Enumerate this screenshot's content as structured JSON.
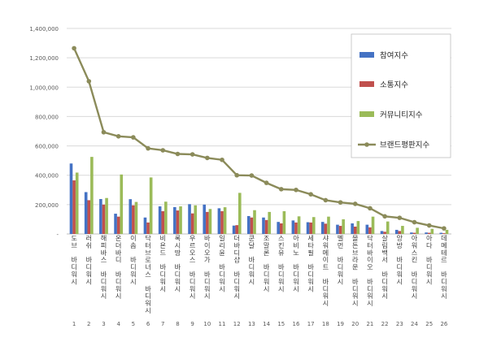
{
  "chart_data": {
    "type": "bar",
    "title": "",
    "xlabel": "",
    "ylabel": "",
    "ylim": [
      0,
      1400000
    ],
    "yticks": [
      0,
      200000,
      400000,
      600000,
      800000,
      1000000,
      1200000,
      1400000
    ],
    "ytick_labels": [
      "-",
      "200,000",
      "400,000",
      "600,000",
      "800,000",
      "1,000,000",
      "1,200,000",
      "1,400,000"
    ],
    "grid": true,
    "legend_position": "right",
    "categories": [
      "도브 바디워시",
      "러쉬 바디워시",
      "해피바스 바디워시",
      "온더바디 바디워시",
      "이솝 바디워시",
      "닥터브로너스 바디워시",
      "비욘드 바디워시",
      "록시땅 바디워시",
      "우르오스 바디워시",
      "바이오가 바디워시",
      "일리윤 바디워시",
      "더바디샵 바디워시",
      "쿤달 바디워시",
      "조말론 바디워시",
      "스킨유 바디워시",
      "아비노 바디워시",
      "세타필 바디워시",
      "샤워메이트 바디워시",
      "벨먼 바디워시",
      "몰튼브라운 바디워시",
      "닥터바이오 바디워시",
      "살림백서 바디워시",
      "앙방 바디워시",
      "아워스킨 바디워시",
      "아다 바디워시",
      "데메테르 바디워시"
    ],
    "index_labels": [
      "1",
      "2",
      "3",
      "4",
      "5",
      "6",
      "7",
      "8",
      "9",
      "10",
      "11",
      "12",
      "13",
      "14",
      "15",
      "16",
      "17",
      "18",
      "19",
      "20",
      "21",
      "22",
      "23",
      "24",
      "25",
      "26"
    ],
    "series": [
      {
        "name": "참여지수",
        "type": "bar",
        "color": "#4472c4",
        "values": [
          480000,
          285000,
          238000,
          138000,
          237000,
          112000,
          188000,
          183000,
          203000,
          200000,
          175000,
          57000,
          122000,
          112000,
          82000,
          92000,
          80000,
          82000,
          63000,
          72000,
          63000,
          20000,
          28000,
          10000,
          10000,
          8000
        ]
      },
      {
        "name": "소통지수",
        "type": "bar",
        "color": "#c0504d",
        "values": [
          365000,
          230000,
          200000,
          118000,
          195000,
          78000,
          155000,
          160000,
          140000,
          150000,
          155000,
          60000,
          112000,
          95000,
          72000,
          78000,
          78000,
          70000,
          55000,
          50000,
          45000,
          15000,
          20000,
          8000,
          8000,
          5000
        ]
      },
      {
        "name": "커뮤니티지수",
        "type": "bar",
        "color": "#9bbb59",
        "values": [
          418000,
          525000,
          245000,
          405000,
          218000,
          385000,
          220000,
          188000,
          195000,
          170000,
          182000,
          280000,
          162000,
          150000,
          155000,
          120000,
          115000,
          118000,
          100000,
          88000,
          118000,
          85000,
          55000,
          42000,
          35000,
          28000
        ]
      },
      {
        "name": "브랜드평판지수",
        "type": "line",
        "color": "#8b8b5a",
        "values": [
          1265000,
          1040000,
          693000,
          665000,
          658000,
          583000,
          570000,
          545000,
          542000,
          518000,
          505000,
          400000,
          398000,
          348000,
          305000,
          300000,
          270000,
          230000,
          215000,
          205000,
          175000,
          120000,
          110000,
          80000,
          58000,
          38000
        ]
      }
    ]
  }
}
